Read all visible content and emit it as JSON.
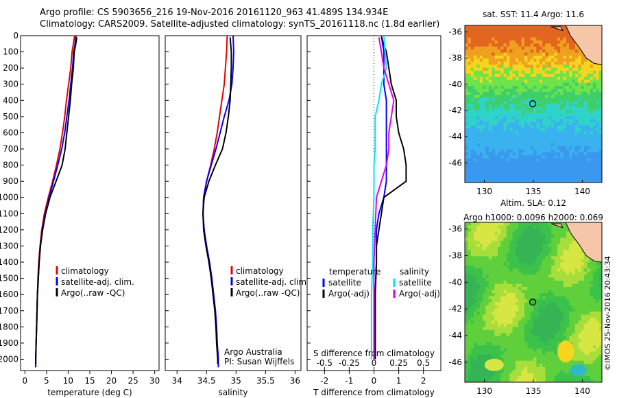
{
  "header": {
    "line1": "Argo profile: CS 5903656_216 19-Nov-2016 20161120_963 41.489S 134.934E",
    "line2": "Climatology: CARS2009. Satellite-adjusted climatology: synTS_20161118.nc (1.8d earlier)"
  },
  "footer_stamp": "©IMOS 25-Nov-2016 20:43:34",
  "colors": {
    "climatology": "#e60000",
    "satellite": "#0000ff",
    "argo": "#000000",
    "cyan": "#00e5ff",
    "magenta": "#e600e6",
    "land": "#f5c7a8"
  },
  "chart_data": [
    {
      "type": "line",
      "xlabel": "temperature (deg C)",
      "ylabel": "",
      "xlim": [
        -1,
        31
      ],
      "ylim": [
        2070,
        0
      ],
      "x_ticks": [
        "0",
        "5",
        "10",
        "15",
        "20",
        "25",
        "30"
      ],
      "y_ticks": [
        "0",
        "100",
        "200",
        "300",
        "400",
        "500",
        "600",
        "700",
        "800",
        "900",
        "1000",
        "1100",
        "1200",
        "1300",
        "1400",
        "1500",
        "1600",
        "1700",
        "1800",
        "1900",
        "2000"
      ],
      "legend": {
        "placement": "center",
        "entries": [
          "climatology",
          "satellite-adj. clim.",
          "Argo(..raw -QC)"
        ]
      },
      "series": [
        {
          "name": "climatology",
          "color": "#e60000",
          "points": [
            [
              11.5,
              0
            ],
            [
              11.2,
              50
            ],
            [
              10.9,
              100
            ],
            [
              10.6,
              200
            ],
            [
              10.1,
              300
            ],
            [
              9.6,
              400
            ],
            [
              9.2,
              500
            ],
            [
              8.7,
              600
            ],
            [
              8.1,
              700
            ],
            [
              7.3,
              800
            ],
            [
              6.4,
              900
            ],
            [
              5.4,
              1000
            ],
            [
              4.5,
              1100
            ],
            [
              3.9,
              1200
            ],
            [
              3.5,
              1300
            ],
            [
              3.2,
              1400
            ],
            [
              3.0,
              1500
            ],
            [
              2.9,
              1600
            ],
            [
              2.8,
              1700
            ],
            [
              2.7,
              1800
            ],
            [
              2.6,
              1900
            ],
            [
              2.5,
              2000
            ],
            [
              2.5,
              2050
            ]
          ]
        },
        {
          "name": "satellite-adj. clim.",
          "color": "#0000ff",
          "points": [
            [
              11.8,
              0
            ],
            [
              11.6,
              50
            ],
            [
              11.3,
              100
            ],
            [
              11.0,
              200
            ],
            [
              10.6,
              300
            ],
            [
              10.2,
              400
            ],
            [
              9.7,
              500
            ],
            [
              9.2,
              600
            ],
            [
              8.5,
              700
            ],
            [
              7.6,
              800
            ],
            [
              6.6,
              900
            ],
            [
              5.6,
              1000
            ],
            [
              4.7,
              1100
            ],
            [
              4.0,
              1200
            ],
            [
              3.6,
              1300
            ],
            [
              3.3,
              1400
            ],
            [
              3.1,
              1500
            ],
            [
              2.9,
              1600
            ],
            [
              2.8,
              1700
            ],
            [
              2.7,
              1800
            ],
            [
              2.6,
              1900
            ],
            [
              2.5,
              2000
            ],
            [
              2.5,
              2050
            ]
          ]
        },
        {
          "name": "Argo(..raw -QC)",
          "color": "#000000",
          "points": [
            [
              12.0,
              10
            ],
            [
              11.7,
              60
            ],
            [
              11.4,
              100
            ],
            [
              11.2,
              200
            ],
            [
              10.8,
              300
            ],
            [
              10.5,
              400
            ],
            [
              10.1,
              500
            ],
            [
              9.7,
              600
            ],
            [
              9.3,
              700
            ],
            [
              8.6,
              800
            ],
            [
              7.2,
              900
            ],
            [
              5.8,
              1000
            ],
            [
              4.8,
              1100
            ],
            [
              4.1,
              1200
            ],
            [
              3.6,
              1300
            ],
            [
              3.3,
              1400
            ],
            [
              3.1,
              1500
            ],
            [
              2.9,
              1600
            ],
            [
              2.8,
              1700
            ],
            [
              2.7,
              1800
            ],
            [
              2.6,
              1900
            ],
            [
              2.5,
              2000
            ],
            [
              2.5,
              2030
            ]
          ]
        }
      ]
    },
    {
      "type": "line",
      "xlabel": "salinity",
      "ylabel": "",
      "xlim": [
        33.8,
        36.1
      ],
      "ylim": [
        2070,
        0
      ],
      "x_ticks": [
        "34",
        "34.5",
        "35",
        "35.5",
        "36"
      ],
      "legend": {
        "placement": "bottom-right",
        "entries": [
          "climatology",
          "satellite-adj. clim.",
          "Argo(..raw -QC)"
        ]
      },
      "annotations": [
        "Argo Australia",
        "PI: Susan Wijffels"
      ],
      "series": [
        {
          "name": "climatology",
          "color": "#e60000",
          "points": [
            [
              34.85,
              0
            ],
            [
              34.84,
              100
            ],
            [
              34.82,
              200
            ],
            [
              34.8,
              300
            ],
            [
              34.76,
              400
            ],
            [
              34.72,
              500
            ],
            [
              34.68,
              600
            ],
            [
              34.63,
              700
            ],
            [
              34.57,
              800
            ],
            [
              34.5,
              900
            ],
            [
              34.45,
              1000
            ],
            [
              34.44,
              1100
            ],
            [
              34.46,
              1200
            ],
            [
              34.5,
              1300
            ],
            [
              34.55,
              1400
            ],
            [
              34.59,
              1500
            ],
            [
              34.62,
              1600
            ],
            [
              34.65,
              1700
            ],
            [
              34.67,
              1800
            ],
            [
              34.68,
              1900
            ],
            [
              34.7,
              2000
            ],
            [
              34.7,
              2050
            ]
          ]
        },
        {
          "name": "satellite-adj. clim.",
          "color": "#0000ff",
          "points": [
            [
              34.95,
              0
            ],
            [
              34.96,
              100
            ],
            [
              34.95,
              200
            ],
            [
              34.93,
              300
            ],
            [
              34.88,
              400
            ],
            [
              34.8,
              500
            ],
            [
              34.73,
              600
            ],
            [
              34.66,
              700
            ],
            [
              34.58,
              800
            ],
            [
              34.5,
              900
            ],
            [
              34.45,
              1000
            ],
            [
              34.44,
              1100
            ],
            [
              34.46,
              1200
            ],
            [
              34.5,
              1300
            ],
            [
              34.55,
              1400
            ],
            [
              34.59,
              1500
            ],
            [
              34.62,
              1600
            ],
            [
              34.65,
              1700
            ],
            [
              34.67,
              1800
            ],
            [
              34.68,
              1900
            ],
            [
              34.7,
              2000
            ],
            [
              34.7,
              2050
            ]
          ]
        },
        {
          "name": "Argo(..raw -QC)",
          "color": "#000000",
          "points": [
            [
              34.9,
              10
            ],
            [
              34.92,
              100
            ],
            [
              34.92,
              200
            ],
            [
              34.91,
              300
            ],
            [
              34.9,
              400
            ],
            [
              34.87,
              500
            ],
            [
              34.83,
              600
            ],
            [
              34.77,
              700
            ],
            [
              34.65,
              800
            ],
            [
              34.54,
              900
            ],
            [
              34.46,
              1000
            ],
            [
              34.44,
              1100
            ],
            [
              34.45,
              1200
            ],
            [
              34.49,
              1300
            ],
            [
              34.54,
              1400
            ],
            [
              34.58,
              1500
            ],
            [
              34.61,
              1600
            ],
            [
              34.64,
              1700
            ],
            [
              34.66,
              1800
            ],
            [
              34.67,
              1900
            ],
            [
              34.69,
              2000
            ],
            [
              34.69,
              2030
            ]
          ]
        }
      ]
    },
    {
      "type": "line",
      "xlabel": "T difference from climatology",
      "ylabel": "",
      "title": "S difference from climatology",
      "xlim": [
        -2.7,
        2.7
      ],
      "ylim": [
        2070,
        0
      ],
      "x_ticks": [
        "-2",
        "-1",
        "0",
        "1",
        "2"
      ],
      "top_ticks": [
        "-0.5",
        "-0.25",
        "0",
        "0.25",
        "0.5"
      ],
      "legend": {
        "placement": "bottom",
        "groups": [
          {
            "heading": "temperature",
            "entries": [
              "satellite",
              "Argo(-adj)"
            ]
          },
          {
            "heading": "salinity",
            "entries": [
              "satellite",
              "Argo(-adj)"
            ]
          }
        ]
      },
      "series": [
        {
          "name": "temperature satellite",
          "color": "#0000ff",
          "points": [
            [
              0.3,
              0
            ],
            [
              0.4,
              100
            ],
            [
              0.4,
              200
            ],
            [
              0.4,
              300
            ],
            [
              0.5,
              400
            ],
            [
              0.5,
              500
            ],
            [
              0.5,
              600
            ],
            [
              0.5,
              700
            ],
            [
              0.5,
              800
            ],
            [
              0.5,
              900
            ],
            [
              0.4,
              1000
            ],
            [
              0.2,
              1100
            ],
            [
              0.1,
              1200
            ],
            [
              0.1,
              1300
            ],
            [
              0.1,
              1400
            ],
            [
              0.05,
              1600
            ],
            [
              0.05,
              2000
            ]
          ]
        },
        {
          "name": "temperature Argo(-adj)",
          "color": "#000000",
          "points": [
            [
              0.3,
              10
            ],
            [
              0.5,
              100
            ],
            [
              0.6,
              200
            ],
            [
              0.7,
              300
            ],
            [
              0.9,
              400
            ],
            [
              0.9,
              500
            ],
            [
              1.0,
              600
            ],
            [
              1.2,
              700
            ],
            [
              1.3,
              800
            ],
            [
              1.3,
              900
            ],
            [
              0.4,
              1000
            ],
            [
              0.3,
              1100
            ],
            [
              0.2,
              1200
            ],
            [
              0.1,
              1300
            ],
            [
              0.1,
              1400
            ],
            [
              0.05,
              1600
            ],
            [
              0.05,
              2000
            ]
          ]
        },
        {
          "name": "salinity satellite",
          "color": "#00e5ff",
          "points": [
            [
              0.4,
              0
            ],
            [
              0.45,
              100
            ],
            [
              0.5,
              200
            ],
            [
              0.3,
              300
            ],
            [
              0.2,
              400
            ],
            [
              0.05,
              500
            ],
            [
              0.05,
              600
            ],
            [
              0.05,
              700
            ],
            [
              0.0,
              800
            ],
            [
              0.0,
              900
            ],
            [
              0.0,
              1000
            ],
            [
              -0.05,
              1200
            ],
            [
              -0.05,
              1400
            ],
            [
              -0.1,
              1600
            ],
            [
              -0.1,
              1800
            ],
            [
              -0.1,
              2000
            ]
          ]
        },
        {
          "name": "salinity Argo(-adj)",
          "color": "#e600e6",
          "points": [
            [
              0.2,
              10
            ],
            [
              0.3,
              100
            ],
            [
              0.4,
              200
            ],
            [
              0.6,
              300
            ],
            [
              0.8,
              400
            ],
            [
              0.7,
              500
            ],
            [
              0.6,
              600
            ],
            [
              0.6,
              700
            ],
            [
              0.5,
              800
            ],
            [
              0.3,
              900
            ],
            [
              0.1,
              1000
            ],
            [
              0.05,
              1200
            ],
            [
              0.0,
              1400
            ],
            [
              0.0,
              1600
            ],
            [
              0.0,
              2000
            ]
          ]
        }
      ]
    },
    {
      "type": "heatmap",
      "title": "sat. SST: 11.4  Argo: 11.6",
      "xlim": [
        128,
        142
      ],
      "ylim": [
        -47.5,
        -35.5
      ],
      "x_ticks": [
        "130",
        "135",
        "140"
      ],
      "y_ticks": [
        "-36",
        "-38",
        "-40",
        "-42",
        "-44",
        "-46"
      ],
      "marker": {
        "lon": 134.934,
        "lat": -41.489
      }
    },
    {
      "type": "heatmap",
      "title": "Altim. SLA: 0.12",
      "subtitle": "Argo h1000: 0.0096 h2000: 0.069",
      "xlim": [
        128,
        142
      ],
      "ylim": [
        -47.5,
        -35.5
      ],
      "x_ticks": [
        "130",
        "135",
        "140"
      ],
      "y_ticks": [
        "-36",
        "-38",
        "-40",
        "-42",
        "-44",
        "-46"
      ],
      "marker": {
        "lon": 134.934,
        "lat": -41.489
      }
    }
  ]
}
